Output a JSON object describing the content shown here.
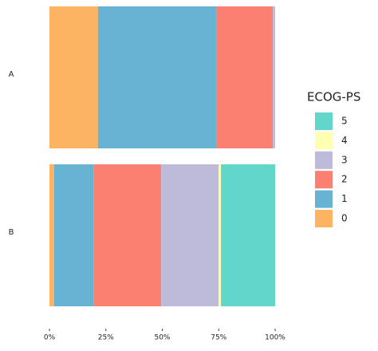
{
  "chart_data": {
    "type": "stacked-bar-horizontal",
    "categories": [
      "A",
      "B"
    ],
    "series": [
      {
        "name": "0",
        "color": "#fdb462",
        "values": [
          21.5,
          2
        ]
      },
      {
        "name": "1",
        "color": "#67b3d3",
        "values": [
          52.5,
          17.5
        ]
      },
      {
        "name": "2",
        "color": "#fb8072",
        "values": [
          25,
          30
        ]
      },
      {
        "name": "3",
        "color": "#bebada",
        "values": [
          1,
          25.5
        ]
      },
      {
        "name": "4",
        "color": "#ffffb3",
        "values": [
          0,
          1
        ]
      },
      {
        "name": "5",
        "color": "#62d6c8",
        "values": [
          0,
          24
        ]
      }
    ],
    "xlim": [
      0,
      100
    ],
    "xticks": [
      {
        "value": 0,
        "label": "0%"
      },
      {
        "value": 25,
        "label": "25%"
      },
      {
        "value": 50,
        "label": "50%"
      },
      {
        "value": 75,
        "label": "75%"
      },
      {
        "value": 100,
        "label": "100%"
      }
    ],
    "legend_title": "ECOG-PS",
    "legend_position": "right",
    "grid": false
  }
}
